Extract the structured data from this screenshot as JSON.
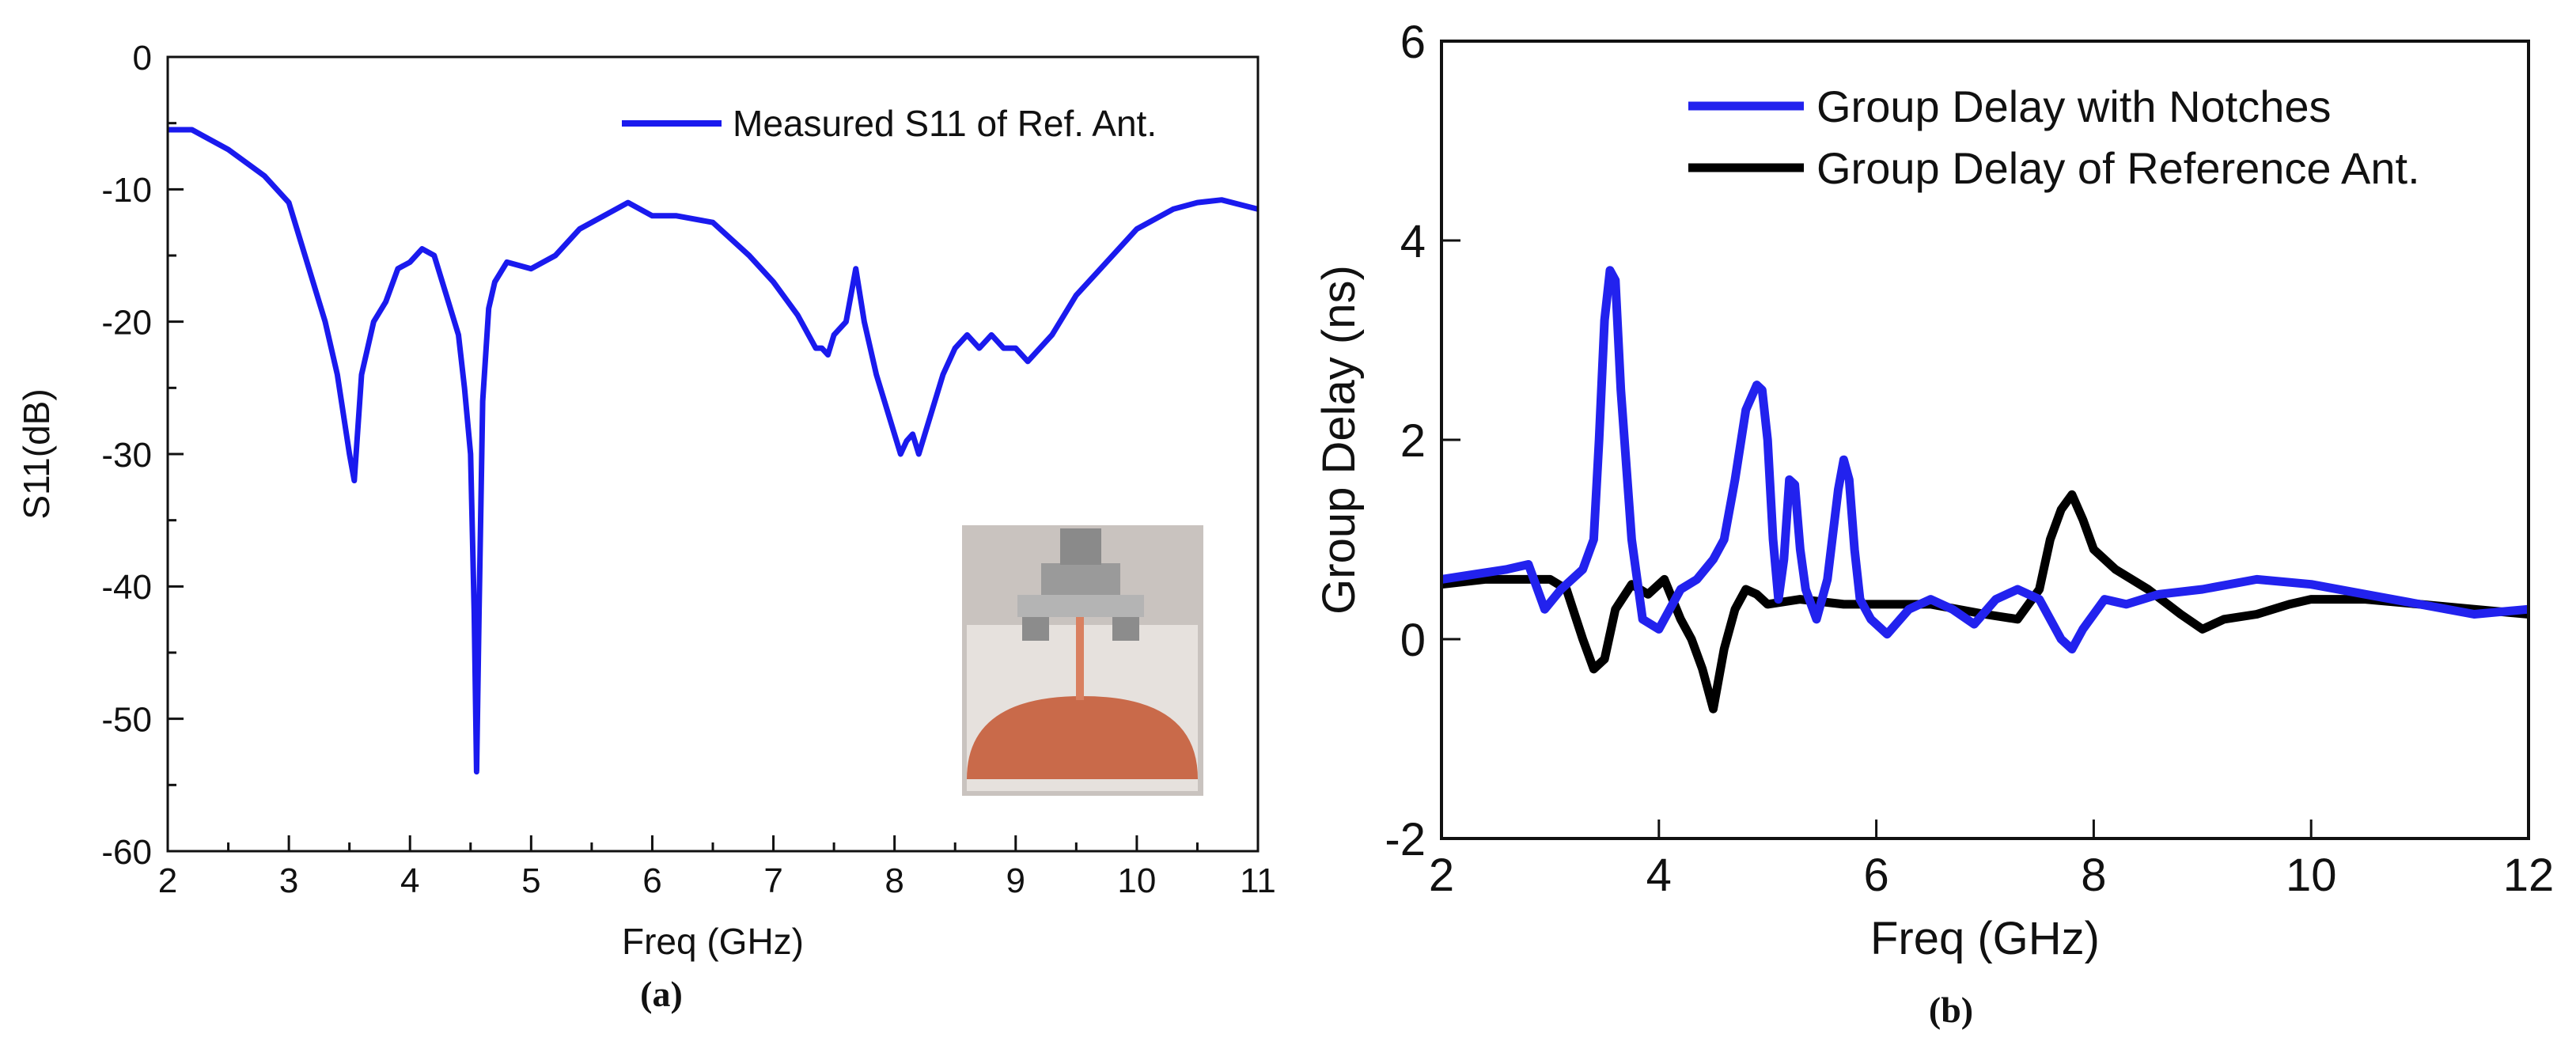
{
  "chart_data": [
    {
      "type": "line",
      "panel_caption": "(a)",
      "xlabel": "Freq (GHz)",
      "ylabel": "S11(dB)",
      "xlim": [
        2,
        11
      ],
      "ylim": [
        -60,
        0
      ],
      "xticks": [
        2,
        3,
        4,
        5,
        6,
        7,
        8,
        9,
        10,
        11
      ],
      "yticks": [
        0,
        -10,
        -20,
        -30,
        -40,
        -50,
        -60
      ],
      "legend_position": "top-right",
      "inset_photo": true,
      "series": [
        {
          "name": "Measured S11 of Ref. Ant.",
          "color": "#1a1aee",
          "x": [
            2.0,
            2.2,
            2.5,
            2.8,
            3.0,
            3.1,
            3.2,
            3.3,
            3.4,
            3.5,
            3.54,
            3.6,
            3.7,
            3.8,
            3.9,
            4.0,
            4.1,
            4.2,
            4.3,
            4.4,
            4.45,
            4.5,
            4.53,
            4.55,
            4.57,
            4.6,
            4.65,
            4.7,
            4.8,
            5.0,
            5.2,
            5.4,
            5.6,
            5.8,
            6.0,
            6.2,
            6.5,
            6.8,
            7.0,
            7.2,
            7.35,
            7.4,
            7.45,
            7.5,
            7.6,
            7.68,
            7.75,
            7.85,
            7.95,
            8.05,
            8.1,
            8.15,
            8.2,
            8.3,
            8.4,
            8.5,
            8.6,
            8.7,
            8.8,
            8.9,
            9.0,
            9.1,
            9.2,
            9.3,
            9.5,
            9.7,
            10.0,
            10.3,
            10.5,
            10.7,
            11.0
          ],
          "values": [
            -5.5,
            -5.5,
            -7.0,
            -9.0,
            -11.0,
            -14.0,
            -17.0,
            -20.0,
            -24.0,
            -30.0,
            -32.0,
            -24.0,
            -20.0,
            -18.5,
            -16.0,
            -15.5,
            -14.5,
            -15.0,
            -18.0,
            -21.0,
            -25.0,
            -30.0,
            -42.0,
            -54.0,
            -42.0,
            -26.0,
            -19.0,
            -17.0,
            -15.5,
            -16.0,
            -15.0,
            -13.0,
            -12.0,
            -11.0,
            -12.0,
            -12.0,
            -12.5,
            -15.0,
            -17.0,
            -19.5,
            -22.0,
            -22.0,
            -22.5,
            -21.0,
            -20.0,
            -16.0,
            -20.0,
            -24.0,
            -27.0,
            -30.0,
            -29.0,
            -28.5,
            -30.0,
            -27.0,
            -24.0,
            -22.0,
            -21.0,
            -22.0,
            -21.0,
            -22.0,
            -22.0,
            -23.0,
            -22.0,
            -21.0,
            -18.0,
            -16.0,
            -13.0,
            -11.5,
            -11.0,
            -10.8,
            -11.5
          ]
        }
      ]
    },
    {
      "type": "line",
      "panel_caption": "(b)",
      "xlabel": "Freq (GHz)",
      "ylabel": "Group Delay (ns)",
      "xlim": [
        2,
        12
      ],
      "ylim": [
        -2,
        6
      ],
      "xticks": [
        2,
        4,
        6,
        8,
        10,
        12
      ],
      "yticks": [
        -2,
        0,
        2,
        4,
        6
      ],
      "legend_position": "top-right",
      "series": [
        {
          "name": "Group Delay with Notches",
          "color": "#2222ee",
          "x": [
            2.0,
            2.3,
            2.6,
            2.8,
            2.95,
            3.1,
            3.3,
            3.4,
            3.45,
            3.5,
            3.55,
            3.6,
            3.65,
            3.75,
            3.85,
            4.0,
            4.1,
            4.2,
            4.35,
            4.5,
            4.6,
            4.7,
            4.8,
            4.9,
            4.95,
            5.0,
            5.05,
            5.1,
            5.15,
            5.2,
            5.25,
            5.3,
            5.35,
            5.45,
            5.55,
            5.65,
            5.7,
            5.75,
            5.8,
            5.85,
            5.95,
            6.1,
            6.3,
            6.5,
            6.7,
            6.9,
            7.1,
            7.3,
            7.5,
            7.7,
            7.8,
            7.9,
            8.1,
            8.3,
            8.6,
            9.0,
            9.5,
            10.0,
            10.5,
            11.0,
            11.5,
            12.0
          ],
          "values": [
            0.6,
            0.65,
            0.7,
            0.75,
            0.3,
            0.5,
            0.7,
            1.0,
            2.0,
            3.2,
            3.7,
            3.6,
            2.5,
            1.0,
            0.2,
            0.1,
            0.3,
            0.5,
            0.6,
            0.8,
            1.0,
            1.6,
            2.3,
            2.55,
            2.5,
            2.0,
            1.0,
            0.4,
            0.8,
            1.6,
            1.55,
            0.9,
            0.5,
            0.2,
            0.6,
            1.5,
            1.8,
            1.6,
            0.9,
            0.4,
            0.2,
            0.05,
            0.3,
            0.4,
            0.3,
            0.15,
            0.4,
            0.5,
            0.4,
            0.0,
            -0.1,
            0.1,
            0.4,
            0.35,
            0.45,
            0.5,
            0.6,
            0.55,
            0.45,
            0.35,
            0.25,
            0.3
          ]
        },
        {
          "name": "Group Delay of Reference Ant.",
          "color": "#000000",
          "x": [
            2.0,
            2.4,
            2.8,
            3.0,
            3.15,
            3.3,
            3.4,
            3.5,
            3.6,
            3.75,
            3.9,
            4.05,
            4.2,
            4.3,
            4.4,
            4.5,
            4.6,
            4.7,
            4.8,
            4.9,
            5.0,
            5.3,
            5.7,
            6.0,
            6.5,
            7.0,
            7.3,
            7.5,
            7.6,
            7.7,
            7.8,
            7.9,
            8.0,
            8.2,
            8.5,
            8.8,
            9.0,
            9.2,
            9.5,
            9.8,
            10.0,
            10.5,
            11.0,
            11.5,
            12.0
          ],
          "values": [
            0.55,
            0.6,
            0.6,
            0.6,
            0.5,
            0.0,
            -0.3,
            -0.2,
            0.3,
            0.55,
            0.45,
            0.6,
            0.2,
            0.0,
            -0.3,
            -0.7,
            -0.1,
            0.3,
            0.5,
            0.45,
            0.35,
            0.4,
            0.35,
            0.35,
            0.35,
            0.25,
            0.2,
            0.5,
            1.0,
            1.3,
            1.45,
            1.2,
            0.9,
            0.7,
            0.5,
            0.25,
            0.1,
            0.2,
            0.25,
            0.35,
            0.4,
            0.4,
            0.35,
            0.3,
            0.25
          ]
        }
      ]
    }
  ]
}
